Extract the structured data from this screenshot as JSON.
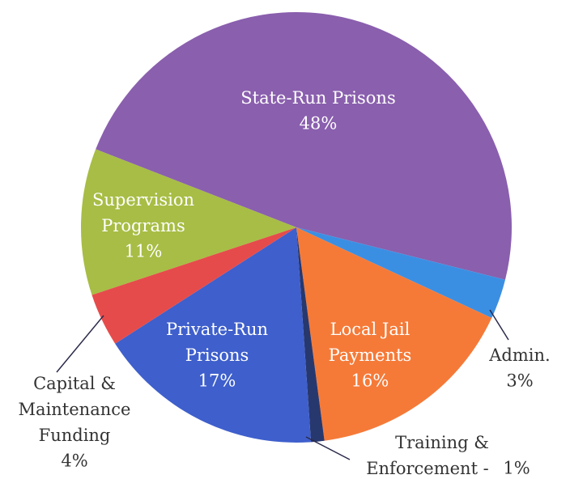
{
  "chart_data": {
    "type": "pie",
    "categories": [
      "State-Run Prisons",
      "Admin.",
      "Local Jail\nPayments",
      "Training &\nEnforcement -",
      "Private-Run\nPrisons",
      "Capital &\nMaintenance\nFunding",
      "Supervision\nPrograms"
    ],
    "values": [
      48,
      3,
      16,
      1,
      17,
      4,
      11
    ],
    "value_labels": [
      "48%",
      "3%",
      "16%",
      "1%",
      "17%",
      "4%",
      "11%"
    ],
    "colors": [
      "#8a5fae",
      "#3b8fe2",
      "#f57a38",
      "#27386f",
      "#3e5fcc",
      "#e64b4b",
      "#a7bd45"
    ]
  }
}
